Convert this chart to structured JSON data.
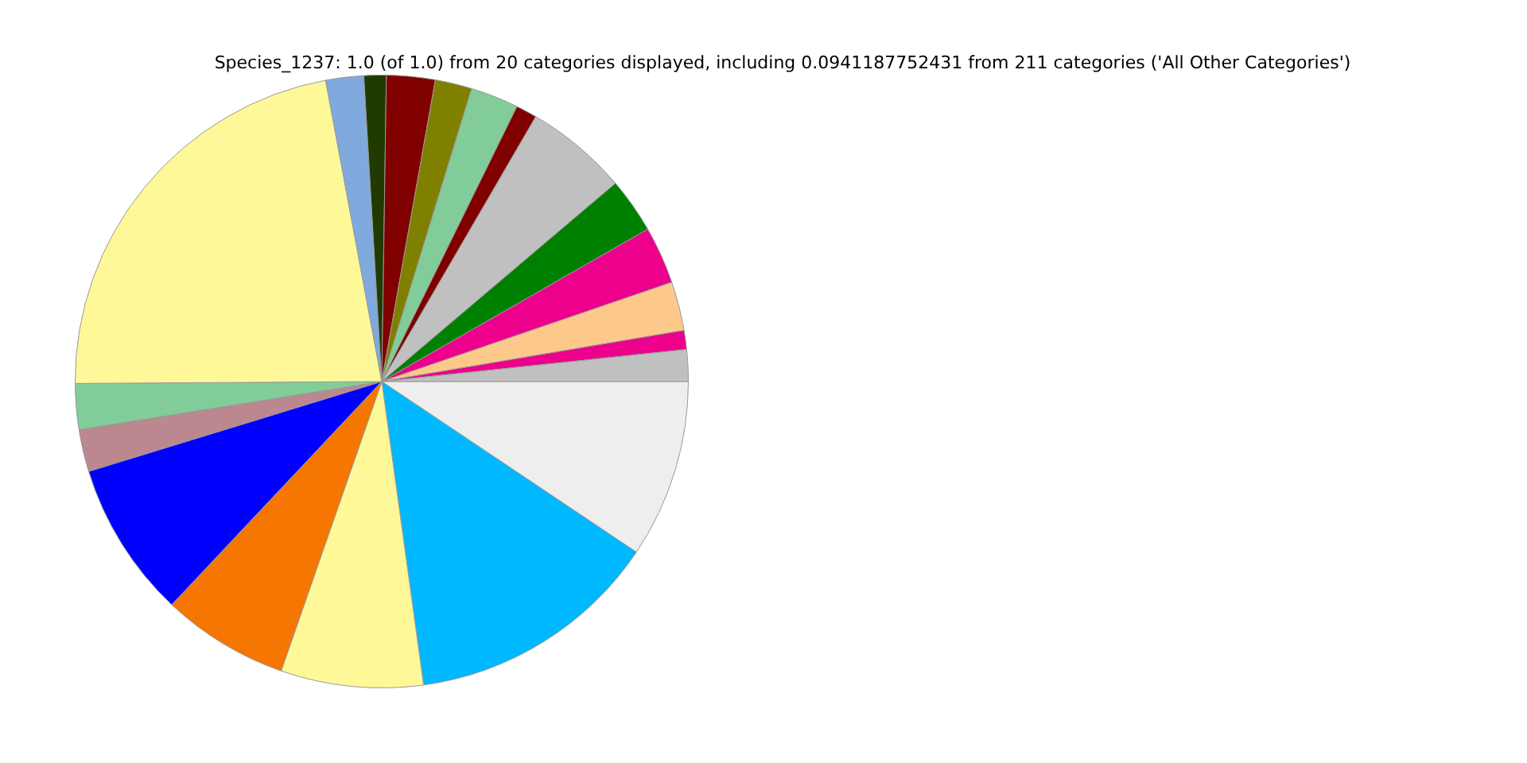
{
  "chart_data": {
    "type": "pie",
    "title": "Species_1237: 1.0 (of 1.0) from 20 categories displayed, including 0.0941187752431 from 211 categories ('All Other Categories')",
    "categories": [
      null,
      null,
      null,
      null,
      null,
      null,
      null,
      null,
      null,
      null,
      null,
      null,
      null,
      null,
      null,
      null,
      null,
      null,
      null,
      null
    ],
    "values": [
      9.4,
      13.42,
      7.5,
      6.69,
      8.25,
      2.22,
      2.42,
      22.17,
      2.0,
      1.17,
      2.56,
      1.94,
      2.53,
      1.11,
      5.42,
      2.92,
      3.03,
      2.58,
      1.0,
      1.67
    ],
    "colors": [
      "#eeeeee",
      "#00b8ff",
      "#fff899",
      "#f57600",
      "#0000ff",
      "#bc8890",
      "#82cc9a",
      "#fff899",
      "#80aadd",
      "#203a00",
      "#800000",
      "#808000",
      "#82cc9a",
      "#800000",
      "#c0c0c0",
      "#008000",
      "#ec008c",
      "#fdc98a",
      "#ec008c",
      "#c0c0c0"
    ],
    "legend": false
  }
}
